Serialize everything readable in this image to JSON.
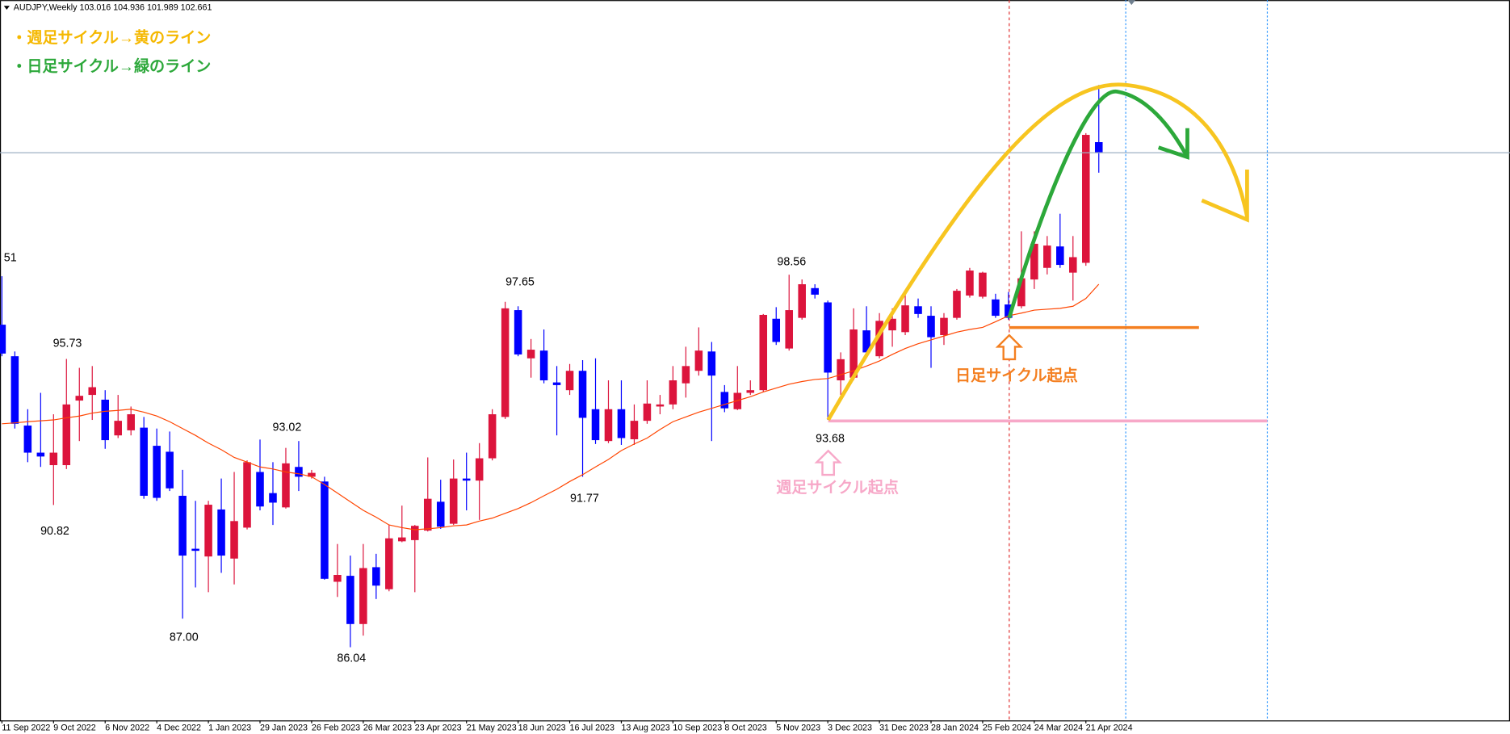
{
  "chart_data": {
    "type": "candlestick",
    "header": "AUDJPY,Weekly  103.016 104.936 101.989 102.661",
    "legend_notes": [
      "・週足サイクル→黄のライン",
      "・日足サイクル→緑のライン"
    ],
    "annotations": [
      "日足サイクル起点",
      "週足サイクル起点"
    ],
    "price_labels": [
      "51",
      "95.73",
      "90.82",
      "87.00",
      "93.02",
      "86.04",
      "97.65",
      "91.77",
      "98.56",
      "93.68"
    ],
    "categories": [
      "11 Sep 2022",
      null,
      null,
      null,
      "9 Oct 2022",
      null,
      null,
      null,
      "6 Nov 2022",
      null,
      null,
      null,
      "4 Dec 2022",
      null,
      null,
      null,
      "1 Jan 2023",
      null,
      null,
      null,
      "29 Jan 2023",
      null,
      null,
      null,
      "26 Feb 2023",
      null,
      null,
      null,
      "26 Mar 2023",
      null,
      null,
      null,
      "23 Apr 2023",
      null,
      null,
      null,
      "21 May 2023",
      null,
      null,
      null,
      "18 Jun 2023",
      null,
      null,
      null,
      "16 Jul 2023",
      null,
      null,
      null,
      "13 Aug 2023",
      null,
      null,
      null,
      "10 Sep 2023",
      null,
      null,
      null,
      "8 Oct 2023",
      null,
      null,
      null,
      "5 Nov 2023",
      null,
      null,
      null,
      "3 Dec 2023",
      null,
      null,
      null,
      "31 Dec 2023",
      null,
      null,
      null,
      "28 Jan 2024",
      null,
      null,
      null,
      "25 Feb 2024",
      null,
      null,
      null,
      "24 Mar 2024",
      null,
      null,
      null,
      "21 Apr 2024",
      null
    ],
    "open": [
      96.88,
      95.82,
      93.49,
      92.58,
      92.16,
      92.16,
      94.33,
      94.52,
      94.36,
      93.16,
      93.33,
      93.42,
      92.81,
      92.61,
      91.13,
      89.35,
      89.09,
      90.67,
      89.02,
      90.06,
      91.93,
      91.22,
      90.74,
      92.1,
      91.77,
      91.61,
      88.24,
      88.44,
      86.82,
      88.73,
      87.99,
      89.6,
      89.64,
      89.96,
      90.93,
      90.19,
      91.71,
      91.64,
      92.39,
      93.78,
      97.37,
      95.75,
      96.01,
      94.94,
      94.68,
      95.33,
      94.04,
      92.97,
      94.04,
      93.03,
      93.65,
      94.13,
      94.2,
      94.91,
      95.33,
      95.98,
      94.62,
      94.04,
      94.59,
      94.68,
      97.08,
      96.08,
      97.11,
      98.11,
      97.63,
      95.01,
      95.1,
      96.69,
      95.82,
      96.69,
      96.63,
      97.5,
      97.18,
      96.53,
      97.11,
      97.86,
      97.82,
      97.73,
      97.56,
      97.5,
      98.4,
      98.79,
      99.51,
      98.63,
      98.96,
      103.016
    ],
    "high": [
      98.51,
      95.98,
      94.04,
      94.59,
      93.87,
      95.73,
      95.43,
      95.49,
      94.68,
      94.52,
      94.13,
      93.78,
      93.39,
      93.29,
      92.0,
      90.96,
      90.96,
      91.71,
      91.93,
      92.32,
      93.02,
      92.26,
      92.74,
      92.97,
      92.0,
      91.77,
      89.51,
      89.12,
      89.51,
      89.18,
      90.15,
      90.8,
      90.15,
      92.42,
      91.67,
      92.35,
      92.58,
      92.9,
      94.04,
      97.65,
      97.5,
      96.4,
      96.72,
      95.49,
      95.56,
      95.69,
      95.75,
      95.01,
      95.01,
      94.2,
      95.01,
      94.52,
      95.49,
      96.14,
      96.79,
      96.3,
      94.85,
      95.49,
      95.01,
      97.24,
      97.47,
      98.56,
      98.4,
      98.24,
      97.69,
      95.95,
      97.43,
      97.5,
      97.27,
      97.43,
      97.92,
      97.76,
      97.5,
      97.27,
      98.08,
      98.79,
      98.66,
      97.92,
      97.98,
      100.02,
      100.02,
      99.86,
      100.61,
      99.86,
      103.32,
      104.936
    ],
    "low": [
      95.82,
      93.39,
      92.26,
      92.1,
      90.82,
      92.03,
      92.97,
      93.68,
      92.71,
      93.07,
      93.16,
      91.03,
      90.96,
      91.29,
      87.0,
      88.05,
      87.89,
      88.54,
      88.15,
      90.0,
      90.64,
      90.15,
      90.7,
      91.29,
      91.71,
      88.31,
      87.73,
      86.04,
      86.43,
      87.66,
      87.92,
      89.57,
      87.89,
      89.93,
      90.02,
      90.15,
      90.64,
      90.32,
      92.32,
      93.71,
      95.82,
      95.1,
      94.91,
      93.16,
      94.52,
      91.77,
      92.87,
      92.9,
      92.84,
      92.84,
      93.55,
      93.87,
      94.04,
      94.43,
      95.17,
      92.97,
      93.94,
      94.01,
      94.52,
      94.62,
      96.2,
      96.01,
      97.05,
      97.76,
      93.68,
      94.52,
      95.01,
      95.82,
      95.75,
      96.14,
      96.53,
      97.11,
      95.43,
      96.2,
      97.05,
      97.79,
      97.76,
      97.11,
      97.05,
      97.43,
      98.08,
      98.57,
      98.79,
      97.69,
      98.86,
      101.989
    ],
    "close": [
      95.91,
      93.55,
      92.58,
      92.45,
      92.58,
      94.2,
      94.49,
      94.78,
      93.0,
      93.65,
      93.87,
      91.13,
      91.06,
      91.38,
      89.12,
      89.28,
      90.83,
      89.12,
      90.28,
      92.26,
      90.77,
      90.9,
      92.22,
      91.77,
      91.9,
      88.34,
      88.47,
      86.82,
      88.7,
      88.11,
      89.7,
      89.73,
      90.12,
      91.03,
      90.09,
      91.71,
      91.64,
      92.39,
      93.87,
      97.43,
      95.88,
      96.04,
      95.01,
      94.85,
      95.33,
      93.75,
      93.0,
      94.04,
      93.07,
      93.65,
      94.23,
      94.2,
      95.01,
      95.49,
      96.01,
      95.17,
      94.07,
      94.59,
      94.68,
      97.21,
      96.3,
      97.37,
      98.24,
      97.89,
      95.27,
      95.72,
      96.72,
      95.95,
      97.01,
      97.08,
      97.53,
      97.24,
      96.46,
      97.11,
      98.02,
      98.7,
      98.63,
      97.18,
      97.11,
      98.44,
      99.6,
      99.54,
      98.89,
      99.15,
      103.26,
      102.661
    ],
    "moving_average": [
      93.55,
      93.58,
      93.62,
      93.65,
      93.68,
      93.75,
      93.81,
      93.91,
      93.97,
      94.0,
      94.04,
      93.94,
      93.81,
      93.62,
      93.39,
      93.16,
      92.9,
      92.68,
      92.42,
      92.26,
      92.1,
      92.03,
      91.93,
      91.87,
      91.77,
      91.51,
      91.22,
      90.93,
      90.64,
      90.41,
      90.15,
      90.06,
      89.99,
      90.02,
      90.06,
      90.12,
      90.15,
      90.28,
      90.38,
      90.54,
      90.7,
      90.9,
      91.13,
      91.35,
      91.61,
      91.84,
      92.1,
      92.35,
      92.65,
      92.87,
      93.07,
      93.36,
      93.62,
      93.78,
      93.94,
      94.07,
      94.2,
      94.33,
      94.46,
      94.62,
      94.75,
      94.88,
      94.97,
      95.04,
      95.07,
      95.2,
      95.33,
      95.49,
      95.66,
      95.88,
      96.08,
      96.24,
      96.37,
      96.5,
      96.63,
      96.72,
      96.79,
      96.98,
      97.18,
      97.27,
      97.37,
      97.4,
      97.43,
      97.5,
      97.76,
      98.24
    ],
    "up_color": "#dc143c",
    "down_color": "#0000ff",
    "ma_color": "#ff4500",
    "bid_color": "#9fb1c4",
    "ylim": [
      83.58,
      107.79
    ]
  }
}
